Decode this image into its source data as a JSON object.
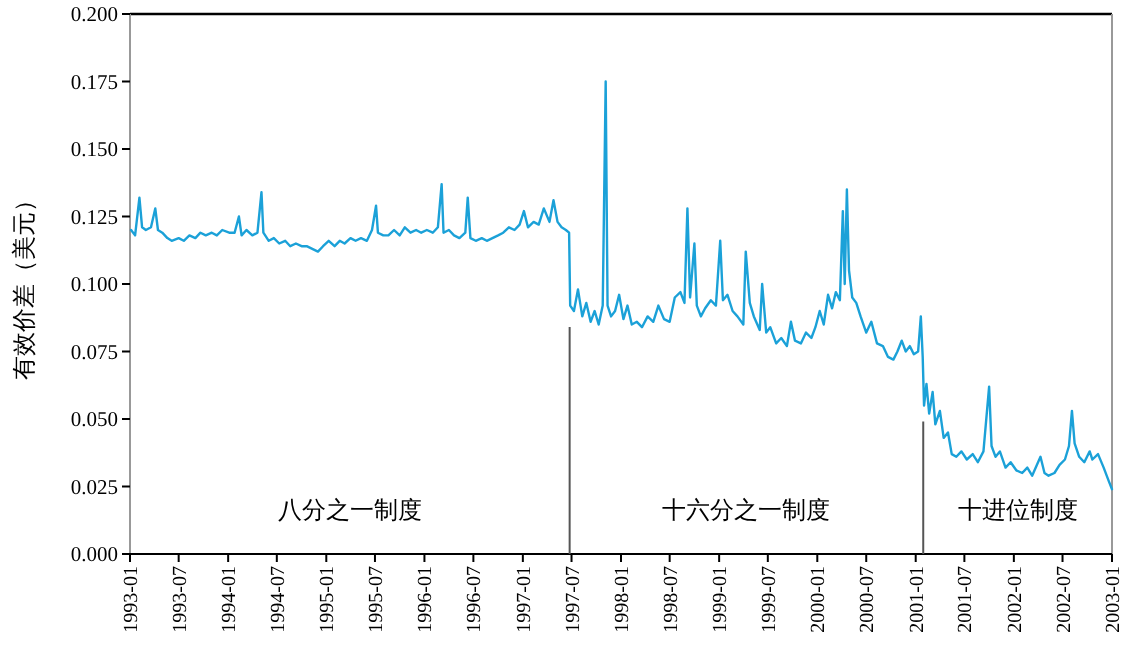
{
  "chart_data": {
    "type": "line",
    "ylabel": "有效价差（美元）",
    "xlim": [
      "1993-01",
      "2003-01"
    ],
    "ylim": [
      0,
      0.2
    ],
    "xticks": [
      "1993-01",
      "1993-07",
      "1994-01",
      "1994-07",
      "1995-01",
      "1995-07",
      "1996-01",
      "1996-07",
      "1997-01",
      "1997-07",
      "1998-01",
      "1998-07",
      "1999-01",
      "1999-07",
      "2000-01",
      "2000-07",
      "2001-01",
      "2001-07",
      "2002-01",
      "2002-07",
      "2003-01"
    ],
    "yticks": [
      {
        "value": 0,
        "label": "0.000"
      },
      {
        "value": 0.025,
        "label": "0.025"
      },
      {
        "value": 0.05,
        "label": "0.050"
      },
      {
        "value": 0.075,
        "label": "0.075"
      },
      {
        "value": 0.1,
        "label": "0.100"
      },
      {
        "value": 0.125,
        "label": "0.125"
      },
      {
        "value": 0.15,
        "label": "0.150"
      },
      {
        "value": 0.175,
        "label": "0.175"
      },
      {
        "value": 0.2,
        "label": "0.200"
      }
    ],
    "ref_lines": [
      {
        "axis": "x",
        "value": "1997-06-24",
        "color": "#555555"
      },
      {
        "axis": "x",
        "value": "2001-01-29",
        "color": "#555555"
      }
    ],
    "annotations": [
      "八分之一制度",
      "十六分之一制度",
      "十进位制度"
    ],
    "series": [
      {
        "color": "#1ba1d8",
        "x": [
          "1993-01-05",
          "1993-01-20",
          "1993-02-05",
          "1993-02-15",
          "1993-03-01",
          "1993-03-20",
          "1993-04-05",
          "1993-04-15",
          "1993-05-01",
          "1993-05-20",
          "1993-06-05",
          "1993-07-01",
          "1993-07-20",
          "1993-08-10",
          "1993-09-01",
          "1993-09-20",
          "1993-10-10",
          "1993-11-01",
          "1993-11-20",
          "1993-12-10",
          "1994-01-05",
          "1994-01-25",
          "1994-02-10",
          "1994-02-20",
          "1994-03-10",
          "1994-04-01",
          "1994-04-20",
          "1994-05-05",
          "1994-05-12",
          "1994-06-01",
          "1994-06-20",
          "1994-07-10",
          "1994-08-01",
          "1994-08-20",
          "1994-09-10",
          "1994-10-01",
          "1994-10-20",
          "1994-11-10",
          "1994-12-01",
          "1994-12-20",
          "1995-01-10",
          "1995-02-01",
          "1995-02-20",
          "1995-03-10",
          "1995-04-01",
          "1995-04-20",
          "1995-05-10",
          "1995-06-01",
          "1995-06-20",
          "1995-07-05",
          "1995-07-12",
          "1995-08-01",
          "1995-08-20",
          "1995-09-10",
          "1995-10-01",
          "1995-10-20",
          "1995-11-10",
          "1995-12-01",
          "1995-12-20",
          "1996-01-10",
          "1996-02-01",
          "1996-02-20",
          "1996-03-05",
          "1996-03-12",
          "1996-04-01",
          "1996-04-20",
          "1996-05-10",
          "1996-06-01",
          "1996-06-10",
          "1996-06-20",
          "1996-07-10",
          "1996-08-01",
          "1996-08-20",
          "1996-09-10",
          "1996-10-01",
          "1996-10-20",
          "1996-11-10",
          "1996-12-01",
          "1996-12-20",
          "1997-01-05",
          "1997-01-20",
          "1997-02-10",
          "1997-03-01",
          "1997-03-20",
          "1997-04-10",
          "1997-04-25",
          "1997-05-10",
          "1997-05-25",
          "1997-06-10",
          "1997-06-22",
          "1997-06-26",
          "1997-07-10",
          "1997-07-25",
          "1997-08-10",
          "1997-08-25",
          "1997-09-10",
          "1997-09-25",
          "1997-10-10",
          "1997-10-25",
          "1997-11-05",
          "1997-11-12",
          "1997-11-25",
          "1997-12-10",
          "1997-12-25",
          "1998-01-10",
          "1998-01-25",
          "1998-02-10",
          "1998-03-01",
          "1998-03-20",
          "1998-04-10",
          "1998-05-01",
          "1998-05-20",
          "1998-06-10",
          "1998-07-01",
          "1998-07-20",
          "1998-08-10",
          "1998-08-25",
          "1998-09-05",
          "1998-09-15",
          "1998-10-01",
          "1998-10-10",
          "1998-10-25",
          "1998-11-10",
          "1998-12-01",
          "1998-12-20",
          "1999-01-05",
          "1999-01-15",
          "1999-02-01",
          "1999-02-20",
          "1999-03-10",
          "1999-04-01",
          "1999-04-10",
          "1999-04-25",
          "1999-05-10",
          "1999-06-01",
          "1999-06-10",
          "1999-06-25",
          "1999-07-10",
          "1999-08-01",
          "1999-08-20",
          "1999-09-10",
          "1999-09-25",
          "1999-10-10",
          "1999-11-01",
          "1999-11-20",
          "1999-12-10",
          "1999-12-25",
          "2000-01-10",
          "2000-01-25",
          "2000-02-10",
          "2000-02-25",
          "2000-03-10",
          "2000-03-25",
          "2000-04-05",
          "2000-04-12",
          "2000-04-20",
          "2000-04-28",
          "2000-05-10",
          "2000-05-25",
          "2000-06-10",
          "2000-07-01",
          "2000-07-20",
          "2000-08-10",
          "2000-09-01",
          "2000-09-20",
          "2000-10-10",
          "2000-10-25",
          "2000-11-10",
          "2000-11-25",
          "2000-12-10",
          "2000-12-25",
          "2001-01-10",
          "2001-01-20",
          "2001-01-27",
          "2001-02-01",
          "2001-02-10",
          "2001-02-20",
          "2001-03-05",
          "2001-03-15",
          "2001-04-01",
          "2001-04-15",
          "2001-05-01",
          "2001-05-15",
          "2001-06-01",
          "2001-06-20",
          "2001-07-10",
          "2001-08-01",
          "2001-08-20",
          "2001-09-10",
          "2001-10-01",
          "2001-10-10",
          "2001-10-25",
          "2001-11-10",
          "2001-12-01",
          "2001-12-20",
          "2002-01-10",
          "2002-02-01",
          "2002-02-20",
          "2002-03-10",
          "2002-04-01",
          "2002-04-10",
          "2002-04-25",
          "2002-05-10",
          "2002-06-01",
          "2002-06-20",
          "2002-07-10",
          "2002-07-25",
          "2002-08-05",
          "2002-08-15",
          "2002-09-01",
          "2002-09-20",
          "2002-10-10",
          "2002-10-20",
          "2002-11-10",
          "2002-12-01",
          "2002-12-20",
          "2003-01-01"
        ],
        "values": [
          0.12,
          0.118,
          0.132,
          0.121,
          0.12,
          0.121,
          0.128,
          0.12,
          0.119,
          0.117,
          0.116,
          0.117,
          0.116,
          0.118,
          0.117,
          0.119,
          0.118,
          0.119,
          0.118,
          0.12,
          0.119,
          0.119,
          0.125,
          0.118,
          0.12,
          0.118,
          0.119,
          0.134,
          0.119,
          0.116,
          0.117,
          0.115,
          0.116,
          0.114,
          0.115,
          0.114,
          0.114,
          0.113,
          0.112,
          0.114,
          0.116,
          0.114,
          0.116,
          0.115,
          0.117,
          0.116,
          0.117,
          0.116,
          0.12,
          0.129,
          0.119,
          0.118,
          0.118,
          0.12,
          0.118,
          0.121,
          0.119,
          0.12,
          0.119,
          0.12,
          0.119,
          0.121,
          0.137,
          0.119,
          0.12,
          0.118,
          0.117,
          0.119,
          0.132,
          0.117,
          0.116,
          0.117,
          0.116,
          0.117,
          0.118,
          0.119,
          0.121,
          0.12,
          0.122,
          0.127,
          0.121,
          0.123,
          0.122,
          0.128,
          0.123,
          0.131,
          0.123,
          0.121,
          0.12,
          0.119,
          0.092,
          0.09,
          0.098,
          0.088,
          0.093,
          0.086,
          0.09,
          0.085,
          0.092,
          0.175,
          0.092,
          0.088,
          0.09,
          0.096,
          0.087,
          0.092,
          0.085,
          0.086,
          0.084,
          0.088,
          0.086,
          0.092,
          0.087,
          0.086,
          0.095,
          0.097,
          0.093,
          0.128,
          0.095,
          0.115,
          0.092,
          0.088,
          0.091,
          0.094,
          0.092,
          0.116,
          0.094,
          0.096,
          0.09,
          0.088,
          0.085,
          0.112,
          0.093,
          0.088,
          0.083,
          0.1,
          0.082,
          0.084,
          0.078,
          0.08,
          0.077,
          0.086,
          0.079,
          0.078,
          0.082,
          0.08,
          0.084,
          0.09,
          0.085,
          0.096,
          0.091,
          0.097,
          0.094,
          0.127,
          0.1,
          0.135,
          0.105,
          0.095,
          0.093,
          0.088,
          0.082,
          0.086,
          0.078,
          0.077,
          0.073,
          0.072,
          0.075,
          0.079,
          0.075,
          0.077,
          0.074,
          0.075,
          0.088,
          0.073,
          0.055,
          0.063,
          0.052,
          0.06,
          0.048,
          0.053,
          0.043,
          0.045,
          0.037,
          0.036,
          0.038,
          0.035,
          0.037,
          0.034,
          0.038,
          0.062,
          0.04,
          0.036,
          0.038,
          0.032,
          0.034,
          0.031,
          0.03,
          0.032,
          0.029,
          0.034,
          0.036,
          0.03,
          0.029,
          0.03,
          0.033,
          0.035,
          0.04,
          0.053,
          0.041,
          0.036,
          0.034,
          0.038,
          0.035,
          0.037,
          0.032,
          0.027,
          0.024
        ]
      }
    ]
  }
}
